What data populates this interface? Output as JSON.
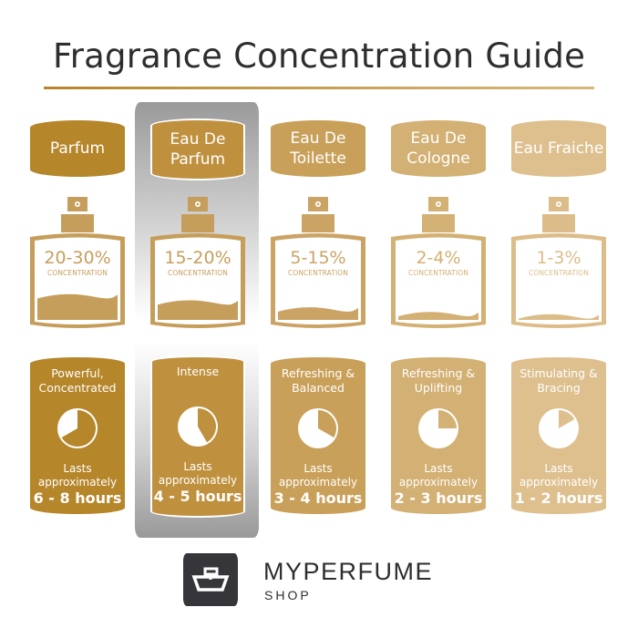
{
  "title": "Fragrance Concentration Guide",
  "colors": {
    "title": "#2e2e30",
    "highlight": "#9a9a9a"
  },
  "columns": [
    {
      "name": "Parfum",
      "concentration": "20-30%",
      "concentration_label": "CONCENTRATION",
      "liquid_level": 0.3,
      "description": "Powerful, Concentrated",
      "lasts_label": "Lasts approximately",
      "duration": "6 - 8 hours",
      "max_hours": 8,
      "color": "#b5862a",
      "bottle_color": "#c69e5b",
      "highlighted": false
    },
    {
      "name": "Eau De Parfum",
      "concentration": "15-20%",
      "concentration_label": "CONCENTRATION",
      "liquid_level": 0.22,
      "description": "Intense",
      "lasts_label": "Lasts approximately",
      "duration": "4 - 5 hours",
      "max_hours": 5,
      "color": "#bf913f",
      "bottle_color": "#c69e5b",
      "highlighted": true
    },
    {
      "name": "Eau De Toilette",
      "concentration": "5-15%",
      "concentration_label": "CONCENTRATION",
      "liquid_level": 0.13,
      "description": "Refreshing & Balanced",
      "lasts_label": "Lasts approximately",
      "duration": "3 - 4 hours",
      "max_hours": 4,
      "color": "#c9a05a",
      "bottle_color": "#cba465",
      "highlighted": false
    },
    {
      "name": "Eau De Cologne",
      "concentration": "2-4%",
      "concentration_label": "CONCENTRATION",
      "liquid_level": 0.07,
      "description": "Refreshing & Uplifting",
      "lasts_label": "Lasts approximately",
      "duration": "2 - 3 hours",
      "max_hours": 3,
      "color": "#d3b073",
      "bottle_color": "#d3b073",
      "highlighted": false
    },
    {
      "name": "Eau Fraiche",
      "concentration": "1-3%",
      "concentration_label": "CONCENTRATION",
      "liquid_level": 0.04,
      "description": "Stimulating & Bracing",
      "lasts_label": "Lasts approximately",
      "duration": "1 - 2 hours",
      "max_hours": 2,
      "color": "#dec08f",
      "bottle_color": "#dcbd89",
      "highlighted": false
    }
  ],
  "brand": {
    "name": "MYPERFUME",
    "sub": "SHOP"
  }
}
